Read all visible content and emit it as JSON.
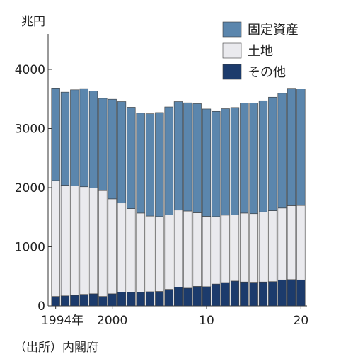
{
  "chart_data": {
    "type": "bar",
    "stacked": true,
    "ylabel": "兆円",
    "ylim": [
      0,
      4500
    ],
    "yticks": [
      0,
      1000,
      2000,
      3000,
      4000
    ],
    "ytick_labels": [
      "0",
      "1000",
      "2000",
      "3000",
      "4000"
    ],
    "categories": [
      "1994",
      "1995",
      "1996",
      "1997",
      "1998",
      "1999",
      "2000",
      "2001",
      "2002",
      "2003",
      "2004",
      "2005",
      "2006",
      "2007",
      "2008",
      "2009",
      "2010",
      "2011",
      "2012",
      "2013",
      "2014",
      "2015",
      "2016",
      "2017",
      "2018",
      "2019",
      "2020"
    ],
    "xtick_labels": [
      {
        "category": "1994",
        "label": "1994年"
      },
      {
        "category": "2000",
        "label": "2000"
      },
      {
        "category": "2010",
        "label": "10"
      },
      {
        "category": "2020",
        "label": "20"
      }
    ],
    "series": [
      {
        "name": "その他",
        "color": "#1c3b6c",
        "values": [
          160,
          170,
          180,
          195,
          205,
          160,
          205,
          235,
          230,
          230,
          240,
          245,
          280,
          315,
          300,
          330,
          325,
          370,
          395,
          420,
          405,
          400,
          405,
          410,
          440,
          445,
          440
        ]
      },
      {
        "name": "土地",
        "color": "#eaeaee",
        "values": [
          1960,
          1870,
          1850,
          1820,
          1790,
          1790,
          1605,
          1505,
          1415,
          1340,
          1280,
          1265,
          1260,
          1305,
          1305,
          1245,
          1190,
          1140,
          1140,
          1120,
          1165,
          1160,
          1185,
          1200,
          1215,
          1250,
          1260
        ]
      },
      {
        "name": "固定資産",
        "color": "#5b86ad",
        "values": [
          1565,
          1575,
          1625,
          1660,
          1640,
          1560,
          1685,
          1715,
          1715,
          1690,
          1730,
          1760,
          1825,
          1835,
          1830,
          1845,
          1815,
          1780,
          1800,
          1815,
          1860,
          1870,
          1880,
          1920,
          1940,
          1985,
          1970
        ]
      }
    ],
    "legend_order": [
      "固定資産",
      "土地",
      "その他"
    ],
    "legend_position": "top-right",
    "grid": false
  },
  "source": "（出所）内閣府"
}
